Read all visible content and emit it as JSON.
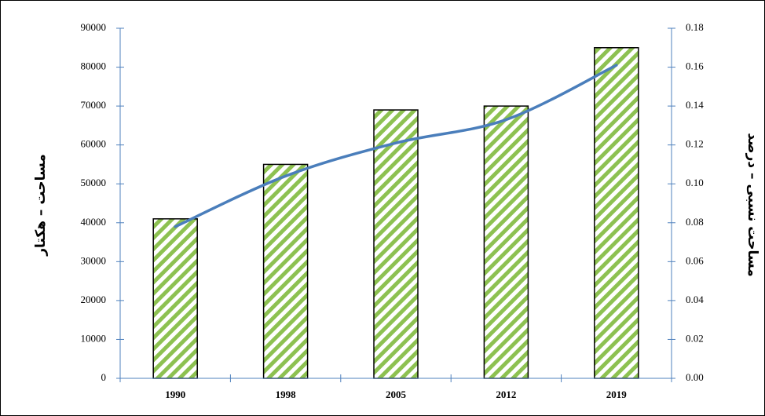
{
  "chart_data": {
    "type": "bar-line",
    "categories": [
      "1990",
      "1998",
      "2005",
      "2012",
      "2019"
    ],
    "series": [
      {
        "type": "bar",
        "color": "#8dc151",
        "values": [
          41000,
          55000,
          69000,
          70000,
          85000
        ]
      },
      {
        "type": "line",
        "axis": "y2",
        "color": "#4a7ebb",
        "values": [
          0.078,
          0.104,
          0.121,
          0.133,
          0.161
        ]
      }
    ],
    "ylabel": "مساحت – هکتار",
    "y2label": "مساحت نسبی – درصد",
    "ylim": [
      0,
      90000
    ],
    "yticks": [
      0,
      10000,
      20000,
      30000,
      40000,
      50000,
      60000,
      70000,
      80000,
      90000
    ],
    "y2lim": [
      0,
      0.18
    ],
    "y2ticks": [
      {
        "value": 0,
        "label": "0.00"
      },
      0.02,
      0.04,
      0.06,
      0.08,
      {
        "value": 0.1,
        "label": "0.10"
      },
      0.12,
      0.14,
      0.16,
      0.18
    ]
  }
}
